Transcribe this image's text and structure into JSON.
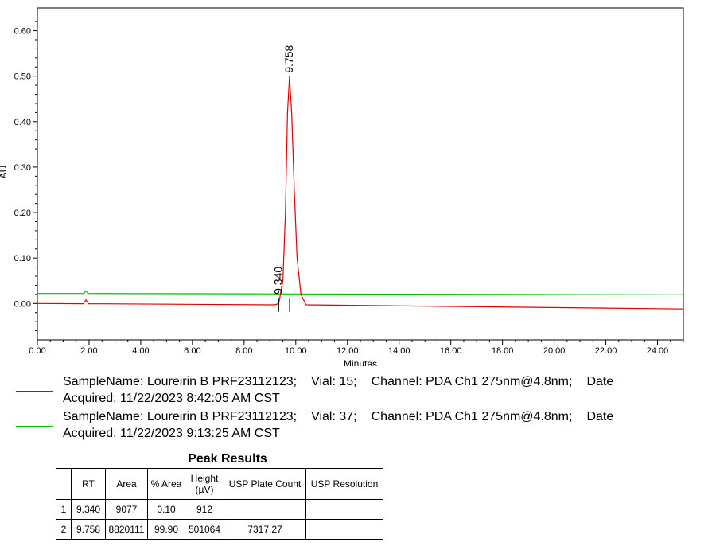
{
  "chart_data": {
    "type": "line",
    "xlabel": "Minutes",
    "ylabel": "AU",
    "xlim": [
      0,
      25
    ],
    "ylim": [
      -0.08,
      0.65
    ],
    "x_ticks": [
      "0.00",
      "2.00",
      "4.00",
      "6.00",
      "8.00",
      "10.00",
      "12.00",
      "14.00",
      "16.00",
      "18.00",
      "20.00",
      "22.00",
      "24.00"
    ],
    "y_ticks": [
      "0.00",
      "0.10",
      "0.20",
      "0.30",
      "0.40",
      "0.50",
      "0.60"
    ],
    "series": [
      {
        "color": "#e00000",
        "baseline_start": 0.0,
        "baseline_end": -0.012,
        "points": [
          [
            0,
            0.0
          ],
          [
            1.78,
            -0.0005
          ],
          [
            1.88,
            0.008
          ],
          [
            1.98,
            -0.0005
          ],
          [
            9.2,
            -0.003
          ],
          [
            9.34,
            0.0
          ],
          [
            9.5,
            0.05
          ],
          [
            9.6,
            0.2
          ],
          [
            9.68,
            0.42
          ],
          [
            9.758,
            0.5
          ],
          [
            9.84,
            0.42
          ],
          [
            9.94,
            0.25
          ],
          [
            10.05,
            0.1
          ],
          [
            10.2,
            0.02
          ],
          [
            10.4,
            -0.003
          ],
          [
            25,
            -0.012
          ]
        ],
        "peaks": [
          {
            "rt": "9.340",
            "x": 9.34,
            "y": 0.0
          },
          {
            "rt": "9.758",
            "x": 9.758,
            "y": 0.5
          }
        ]
      },
      {
        "color": "#00c000",
        "points": [
          [
            0,
            0.022
          ],
          [
            1.8,
            0.022
          ],
          [
            1.88,
            0.028
          ],
          [
            1.96,
            0.022
          ],
          [
            25,
            0.019
          ]
        ],
        "peaks": []
      }
    ]
  },
  "legend": [
    {
      "sample": "SampleName: Loureirin B PRF23112123;",
      "vial": "Vial: 15;",
      "channel": "Channel: PDA Ch1 275nm@4.8nm;",
      "date_label": "Date",
      "acquired": "Acquired: 11/22/2023 8:42:05 AM CST",
      "color": "#e00000"
    },
    {
      "sample": "SampleName: Loureirin B PRF23112123;",
      "vial": "Vial: 37;",
      "channel": "Channel: PDA Ch1 275nm@4.8nm;",
      "date_label": "Date",
      "acquired": "Acquired: 11/22/2023 9:13:25 AM CST",
      "color": "#00c000"
    }
  ],
  "peak_results": {
    "title": "Peak Results",
    "headers": [
      "",
      "RT",
      "Area",
      "% Area",
      "Height (µV)",
      "USP Plate Count",
      "USP Resolution"
    ],
    "rows": [
      [
        "1",
        "9.340",
        "9077",
        "0.10",
        "912",
        "",
        ""
      ],
      [
        "2",
        "9.758",
        "8820111",
        "99.90",
        "501064",
        "7317.27",
        ""
      ]
    ]
  }
}
